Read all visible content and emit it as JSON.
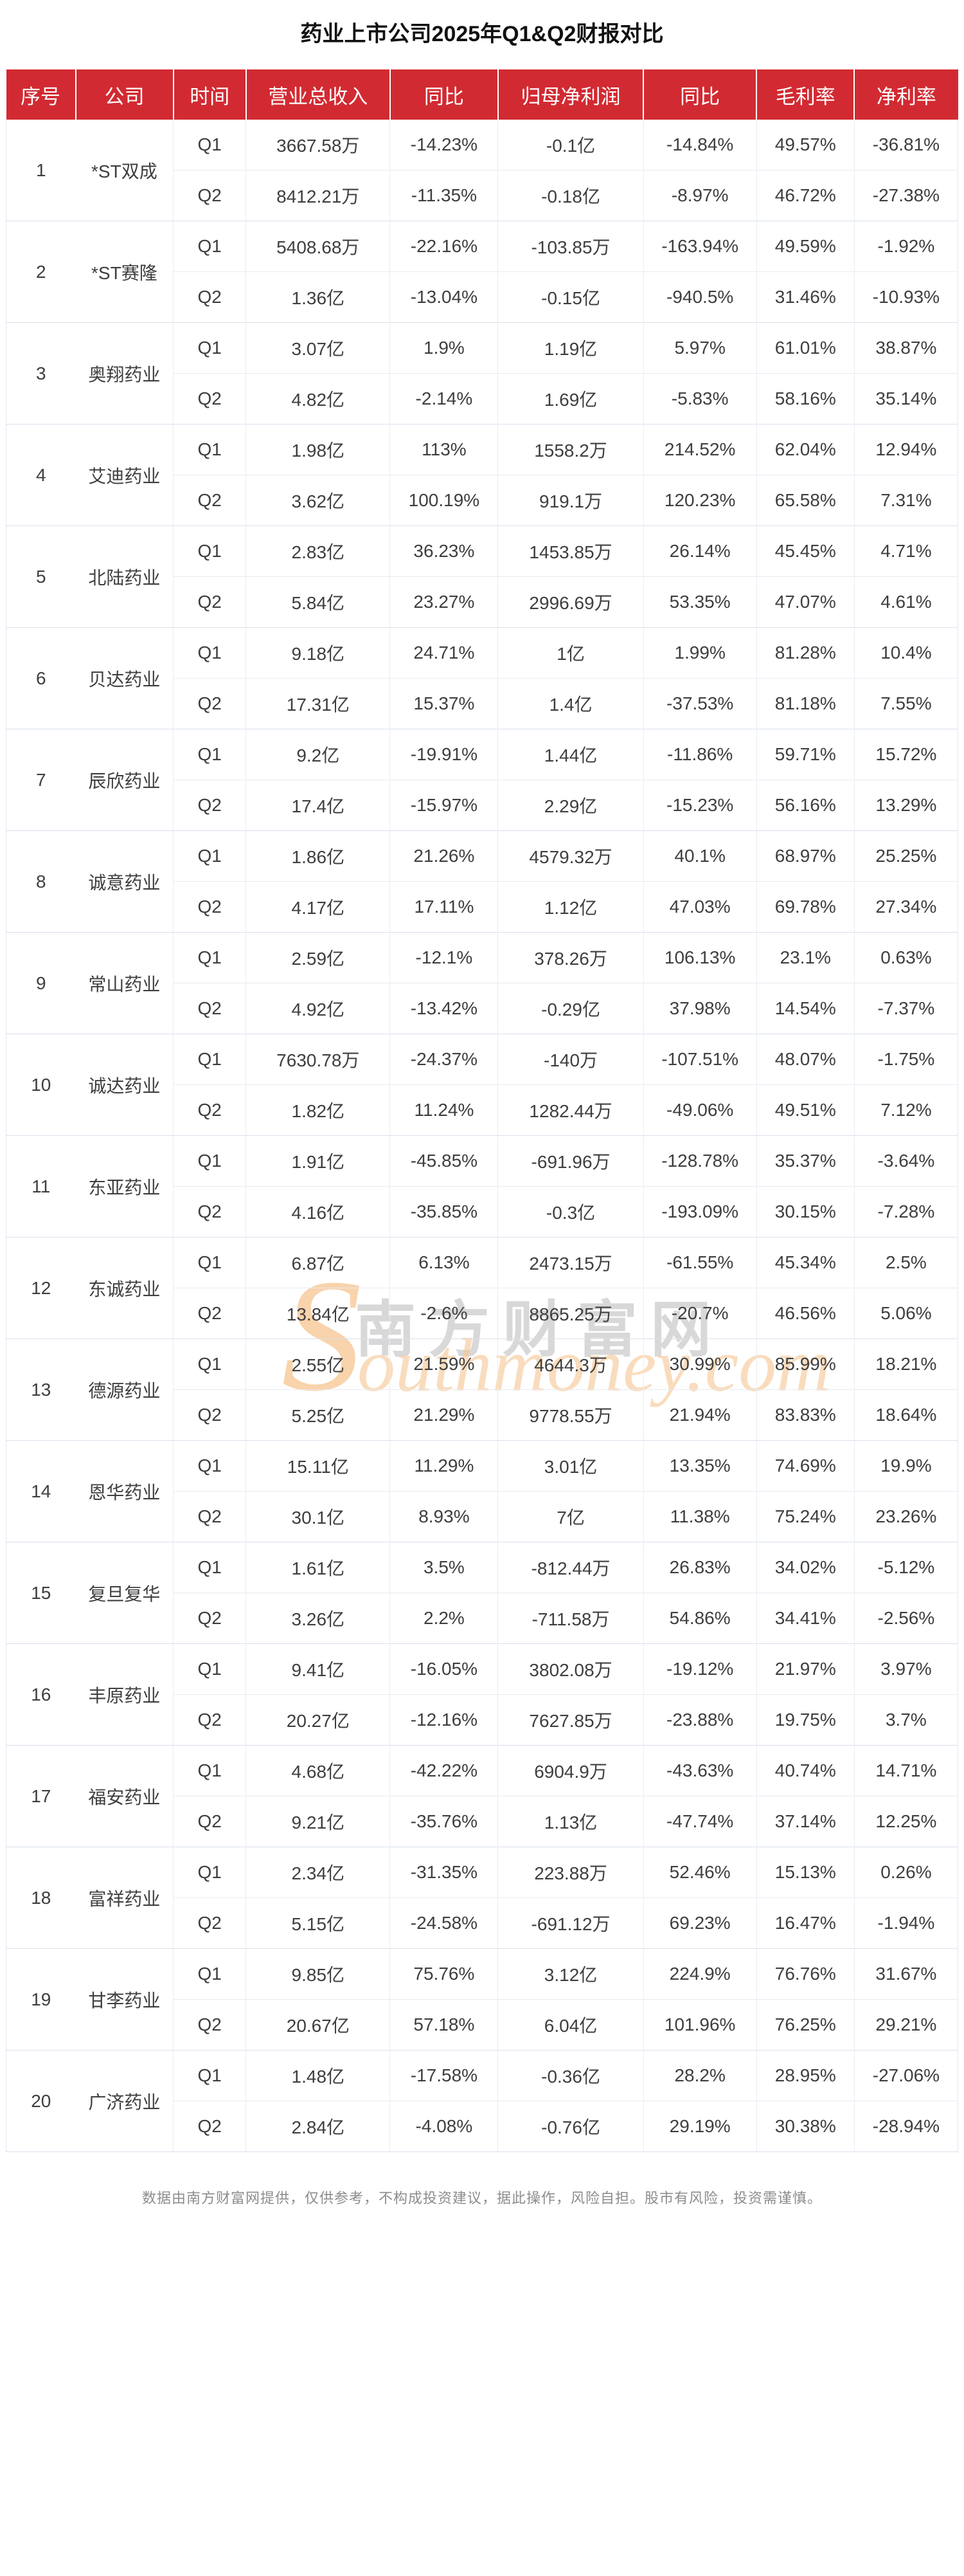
{
  "page": {
    "title": "药业上市公司2025年Q1&Q2财报对比",
    "footer": "数据由南方财富网提供，仅供参考，不构成投资建议，据此操作，风险自担。股市有风险，投资需谨慎。"
  },
  "colors": {
    "header_red": "#d22a32",
    "body_text": "#3e3e3e",
    "grid_line": "#dde3ec",
    "watermark_orange": "#f6c794",
    "footer_gray": "#8c8c8c"
  },
  "watermark": {
    "initial": "S",
    "cn": "南方财富网",
    "en": "outhmoney.com"
  },
  "chart_data": {
    "type": "table",
    "title": "药业上市公司2025年Q1&Q2财报对比",
    "columns": [
      "序号",
      "公司",
      "时间",
      "营业总收入",
      "同比",
      "归母净利润",
      "同比",
      "毛利率",
      "净利率"
    ],
    "column_keys": [
      "index",
      "company",
      "period",
      "revenue",
      "revenue_yoy",
      "net_profit",
      "profit_yoy",
      "gross_margin",
      "net_margin"
    ],
    "companies": [
      {
        "no": "1",
        "name": "*ST双成",
        "rows": [
          [
            "Q1",
            "3667.58万",
            "-14.23%",
            "-0.1亿",
            "-14.84%",
            "49.57%",
            "-36.81%"
          ],
          [
            "Q2",
            "8412.21万",
            "-11.35%",
            "-0.18亿",
            "-8.97%",
            "46.72%",
            "-27.38%"
          ]
        ]
      },
      {
        "no": "2",
        "name": "*ST赛隆",
        "rows": [
          [
            "Q1",
            "5408.68万",
            "-22.16%",
            "-103.85万",
            "-163.94%",
            "49.59%",
            "-1.92%"
          ],
          [
            "Q2",
            "1.36亿",
            "-13.04%",
            "-0.15亿",
            "-940.5%",
            "31.46%",
            "-10.93%"
          ]
        ]
      },
      {
        "no": "3",
        "name": "奥翔药业",
        "rows": [
          [
            "Q1",
            "3.07亿",
            "1.9%",
            "1.19亿",
            "5.97%",
            "61.01%",
            "38.87%"
          ],
          [
            "Q2",
            "4.82亿",
            "-2.14%",
            "1.69亿",
            "-5.83%",
            "58.16%",
            "35.14%"
          ]
        ]
      },
      {
        "no": "4",
        "name": "艾迪药业",
        "rows": [
          [
            "Q1",
            "1.98亿",
            "113%",
            "1558.2万",
            "214.52%",
            "62.04%",
            "12.94%"
          ],
          [
            "Q2",
            "3.62亿",
            "100.19%",
            "919.1万",
            "120.23%",
            "65.58%",
            "7.31%"
          ]
        ]
      },
      {
        "no": "5",
        "name": "北陆药业",
        "rows": [
          [
            "Q1",
            "2.83亿",
            "36.23%",
            "1453.85万",
            "26.14%",
            "45.45%",
            "4.71%"
          ],
          [
            "Q2",
            "5.84亿",
            "23.27%",
            "2996.69万",
            "53.35%",
            "47.07%",
            "4.61%"
          ]
        ]
      },
      {
        "no": "6",
        "name": "贝达药业",
        "rows": [
          [
            "Q1",
            "9.18亿",
            "24.71%",
            "1亿",
            "1.99%",
            "81.28%",
            "10.4%"
          ],
          [
            "Q2",
            "17.31亿",
            "15.37%",
            "1.4亿",
            "-37.53%",
            "81.18%",
            "7.55%"
          ]
        ]
      },
      {
        "no": "7",
        "name": "辰欣药业",
        "rows": [
          [
            "Q1",
            "9.2亿",
            "-19.91%",
            "1.44亿",
            "-11.86%",
            "59.71%",
            "15.72%"
          ],
          [
            "Q2",
            "17.4亿",
            "-15.97%",
            "2.29亿",
            "-15.23%",
            "56.16%",
            "13.29%"
          ]
        ]
      },
      {
        "no": "8",
        "name": "诚意药业",
        "rows": [
          [
            "Q1",
            "1.86亿",
            "21.26%",
            "4579.32万",
            "40.1%",
            "68.97%",
            "25.25%"
          ],
          [
            "Q2",
            "4.17亿",
            "17.11%",
            "1.12亿",
            "47.03%",
            "69.78%",
            "27.34%"
          ]
        ]
      },
      {
        "no": "9",
        "name": "常山药业",
        "rows": [
          [
            "Q1",
            "2.59亿",
            "-12.1%",
            "378.26万",
            "106.13%",
            "23.1%",
            "0.63%"
          ],
          [
            "Q2",
            "4.92亿",
            "-13.42%",
            "-0.29亿",
            "37.98%",
            "14.54%",
            "-7.37%"
          ]
        ]
      },
      {
        "no": "10",
        "name": "诚达药业",
        "rows": [
          [
            "Q1",
            "7630.78万",
            "-24.37%",
            "-140万",
            "-107.51%",
            "48.07%",
            "-1.75%"
          ],
          [
            "Q2",
            "1.82亿",
            "11.24%",
            "1282.44万",
            "-49.06%",
            "49.51%",
            "7.12%"
          ]
        ]
      },
      {
        "no": "11",
        "name": "东亚药业",
        "rows": [
          [
            "Q1",
            "1.91亿",
            "-45.85%",
            "-691.96万",
            "-128.78%",
            "35.37%",
            "-3.64%"
          ],
          [
            "Q2",
            "4.16亿",
            "-35.85%",
            "-0.3亿",
            "-193.09%",
            "30.15%",
            "-7.28%"
          ]
        ]
      },
      {
        "no": "12",
        "name": "东诚药业",
        "rows": [
          [
            "Q1",
            "6.87亿",
            "6.13%",
            "2473.15万",
            "-61.55%",
            "45.34%",
            "2.5%"
          ],
          [
            "Q2",
            "13.84亿",
            "-2.6%",
            "8865.25万",
            "-20.7%",
            "46.56%",
            "5.06%"
          ]
        ]
      },
      {
        "no": "13",
        "name": "德源药业",
        "rows": [
          [
            "Q1",
            "2.55亿",
            "21.59%",
            "4644.3万",
            "30.99%",
            "85.99%",
            "18.21%"
          ],
          [
            "Q2",
            "5.25亿",
            "21.29%",
            "9778.55万",
            "21.94%",
            "83.83%",
            "18.64%"
          ]
        ]
      },
      {
        "no": "14",
        "name": "恩华药业",
        "rows": [
          [
            "Q1",
            "15.11亿",
            "11.29%",
            "3.01亿",
            "13.35%",
            "74.69%",
            "19.9%"
          ],
          [
            "Q2",
            "30.1亿",
            "8.93%",
            "7亿",
            "11.38%",
            "75.24%",
            "23.26%"
          ]
        ]
      },
      {
        "no": "15",
        "name": "复旦复华",
        "rows": [
          [
            "Q1",
            "1.61亿",
            "3.5%",
            "-812.44万",
            "26.83%",
            "34.02%",
            "-5.12%"
          ],
          [
            "Q2",
            "3.26亿",
            "2.2%",
            "-711.58万",
            "54.86%",
            "34.41%",
            "-2.56%"
          ]
        ]
      },
      {
        "no": "16",
        "name": "丰原药业",
        "rows": [
          [
            "Q1",
            "9.41亿",
            "-16.05%",
            "3802.08万",
            "-19.12%",
            "21.97%",
            "3.97%"
          ],
          [
            "Q2",
            "20.27亿",
            "-12.16%",
            "7627.85万",
            "-23.88%",
            "19.75%",
            "3.7%"
          ]
        ]
      },
      {
        "no": "17",
        "name": "福安药业",
        "rows": [
          [
            "Q1",
            "4.68亿",
            "-42.22%",
            "6904.9万",
            "-43.63%",
            "40.74%",
            "14.71%"
          ],
          [
            "Q2",
            "9.21亿",
            "-35.76%",
            "1.13亿",
            "-47.74%",
            "37.14%",
            "12.25%"
          ]
        ]
      },
      {
        "no": "18",
        "name": "富祥药业",
        "rows": [
          [
            "Q1",
            "2.34亿",
            "-31.35%",
            "223.88万",
            "52.46%",
            "15.13%",
            "0.26%"
          ],
          [
            "Q2",
            "5.15亿",
            "-24.58%",
            "-691.12万",
            "69.23%",
            "16.47%",
            "-1.94%"
          ]
        ]
      },
      {
        "no": "19",
        "name": "甘李药业",
        "rows": [
          [
            "Q1",
            "9.85亿",
            "75.76%",
            "3.12亿",
            "224.9%",
            "76.76%",
            "31.67%"
          ],
          [
            "Q2",
            "20.67亿",
            "57.18%",
            "6.04亿",
            "101.96%",
            "76.25%",
            "29.21%"
          ]
        ]
      },
      {
        "no": "20",
        "name": "广济药业",
        "rows": [
          [
            "Q1",
            "1.48亿",
            "-17.58%",
            "-0.36亿",
            "28.2%",
            "28.95%",
            "-27.06%"
          ],
          [
            "Q2",
            "2.84亿",
            "-4.08%",
            "-0.76亿",
            "29.19%",
            "30.38%",
            "-28.94%"
          ]
        ]
      }
    ]
  }
}
